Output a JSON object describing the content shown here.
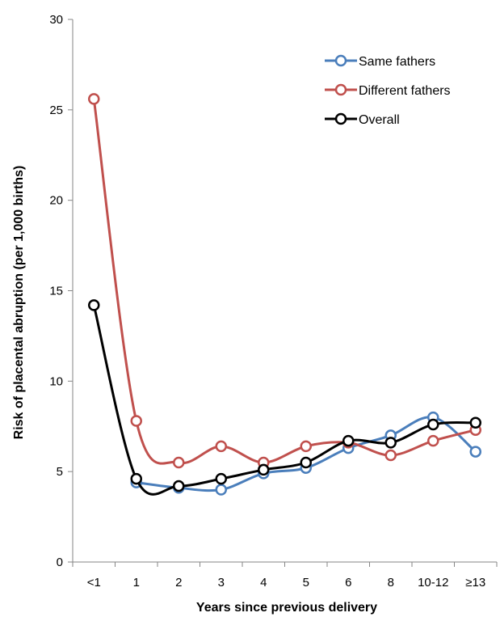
{
  "chart_data": {
    "type": "line",
    "xlabel": "Years since previous delivery",
    "ylabel": "Risk of placental abruption (per 1,000 births)",
    "categories": [
      "<1",
      "1",
      "2",
      "3",
      "4",
      "5",
      "6",
      "8",
      "10-12",
      "≥13"
    ],
    "ylim": [
      0,
      30
    ],
    "yticks": [
      0,
      5,
      10,
      15,
      20,
      25,
      30
    ],
    "grid": false,
    "legend_position": "top-right",
    "series": [
      {
        "name": "Same fathers",
        "color": "#4A7EBB",
        "values": [
          null,
          4.4,
          4.1,
          4.0,
          4.9,
          5.2,
          6.3,
          7.0,
          8.0,
          6.1
        ]
      },
      {
        "name": "Different fathers",
        "color": "#C0504D",
        "values": [
          25.6,
          7.8,
          5.5,
          6.4,
          5.5,
          6.4,
          6.6,
          5.9,
          6.7,
          7.3
        ]
      },
      {
        "name": "Overall",
        "color": "#000000",
        "values": [
          14.2,
          4.6,
          4.2,
          4.6,
          5.1,
          5.5,
          6.7,
          6.6,
          7.6,
          7.7
        ]
      }
    ]
  }
}
